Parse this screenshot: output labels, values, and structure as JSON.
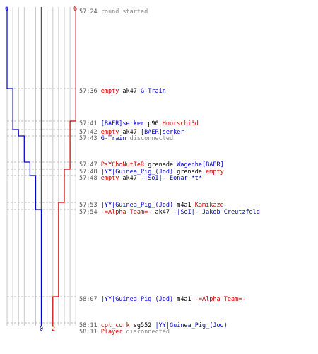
{
  "colors": {
    "team_blue": "#0000cc",
    "team_red": "#cc0000",
    "time": "#555555",
    "gray": "#888888",
    "normal": "#000000",
    "grid": "#c8c8c8",
    "center": "#555555",
    "dotted": "#aaaaaa"
  },
  "counters": {
    "blue_top": "6",
    "red_top": "6",
    "blue_bottom": "0",
    "red_bottom": "2"
  },
  "events": [
    {
      "time": "57:24",
      "parts": [
        {
          "t": "round started",
          "c": "gray"
        }
      ]
    },
    {
      "time": "57:36",
      "parts": [
        {
          "t": "empty",
          "c": "red"
        },
        {
          "t": " ak47 ",
          "c": "normal"
        },
        {
          "t": "G-Train",
          "c": "blue"
        }
      ]
    },
    {
      "time": "57:41",
      "parts": [
        {
          "t": "[BAER]serker",
          "c": "blue"
        },
        {
          "t": " p90 ",
          "c": "normal"
        },
        {
          "t": "Hoorschi3d",
          "c": "red"
        }
      ]
    },
    {
      "time": "57:42",
      "parts": [
        {
          "t": "empty",
          "c": "red"
        },
        {
          "t": " ak47 ",
          "c": "normal"
        },
        {
          "t": "[BAER]serker",
          "c": "blue"
        }
      ]
    },
    {
      "time": "57:43",
      "parts": [
        {
          "t": "G-Train",
          "c": "blue"
        },
        {
          "t": " disconnected",
          "c": "gray"
        }
      ]
    },
    {
      "time": "57:47",
      "parts": [
        {
          "t": "PsYChoNutTeR",
          "c": "red"
        },
        {
          "t": " grenade ",
          "c": "normal"
        },
        {
          "t": "Wagenhe[BAER]",
          "c": "blue"
        }
      ]
    },
    {
      "time": "57:48",
      "parts": [
        {
          "t": "|YY|Guinea_Pig_(Jod)",
          "c": "blue"
        },
        {
          "t": " grenade ",
          "c": "normal"
        },
        {
          "t": "empty",
          "c": "red"
        }
      ]
    },
    {
      "time": "57:48",
      "parts": [
        {
          "t": "empty",
          "c": "red"
        },
        {
          "t": " ak47 ",
          "c": "normal"
        },
        {
          "t": "-|SoI|- Eonar *t*",
          "c": "blue"
        }
      ]
    },
    {
      "time": "57:53",
      "parts": [
        {
          "t": "|YY|Guinea_Pig_(Jod)",
          "c": "blue"
        },
        {
          "t": " m4a1 ",
          "c": "normal"
        },
        {
          "t": "Kamikaze",
          "c": "red"
        }
      ]
    },
    {
      "time": "57:54",
      "parts": [
        {
          "t": "-=Alpha Team=-",
          "c": "red"
        },
        {
          "t": " ak47 ",
          "c": "normal"
        },
        {
          "t": "-|SoI|- Jakob Creutzfeld",
          "c": "blue"
        }
      ]
    },
    {
      "time": "58:07",
      "parts": [
        {
          "t": "|YY|Guinea_Pig_(Jod)",
          "c": "blue"
        },
        {
          "t": " m4a1 ",
          "c": "normal"
        },
        {
          "t": "-=Alpha Team=-",
          "c": "red"
        }
      ]
    },
    {
      "time": "58:11",
      "parts": [
        {
          "t": "cpt_cork",
          "c": "red"
        },
        {
          "t": " sg552 ",
          "c": "normal"
        },
        {
          "t": "|YY|Guinea_Pig_(Jod)",
          "c": "blue"
        }
      ]
    },
    {
      "time": "58:11",
      "parts": [
        {
          "t": "Player",
          "c": "red"
        },
        {
          "t": " disconnected",
          "c": "gray"
        }
      ]
    }
  ],
  "blue_steps": [
    {
      "event": 1,
      "count": 5
    },
    {
      "event": 3,
      "count": 4
    },
    {
      "event": 4,
      "count": 3
    },
    {
      "event": 5,
      "count": 2
    },
    {
      "event": 7,
      "count": 1
    },
    {
      "event": 9,
      "count": 0
    }
  ],
  "red_steps": [
    {
      "event": 2,
      "count": 5
    },
    {
      "event": 6,
      "count": 4
    },
    {
      "event": 8,
      "count": 3
    },
    {
      "event": 10,
      "count": 2
    }
  ]
}
